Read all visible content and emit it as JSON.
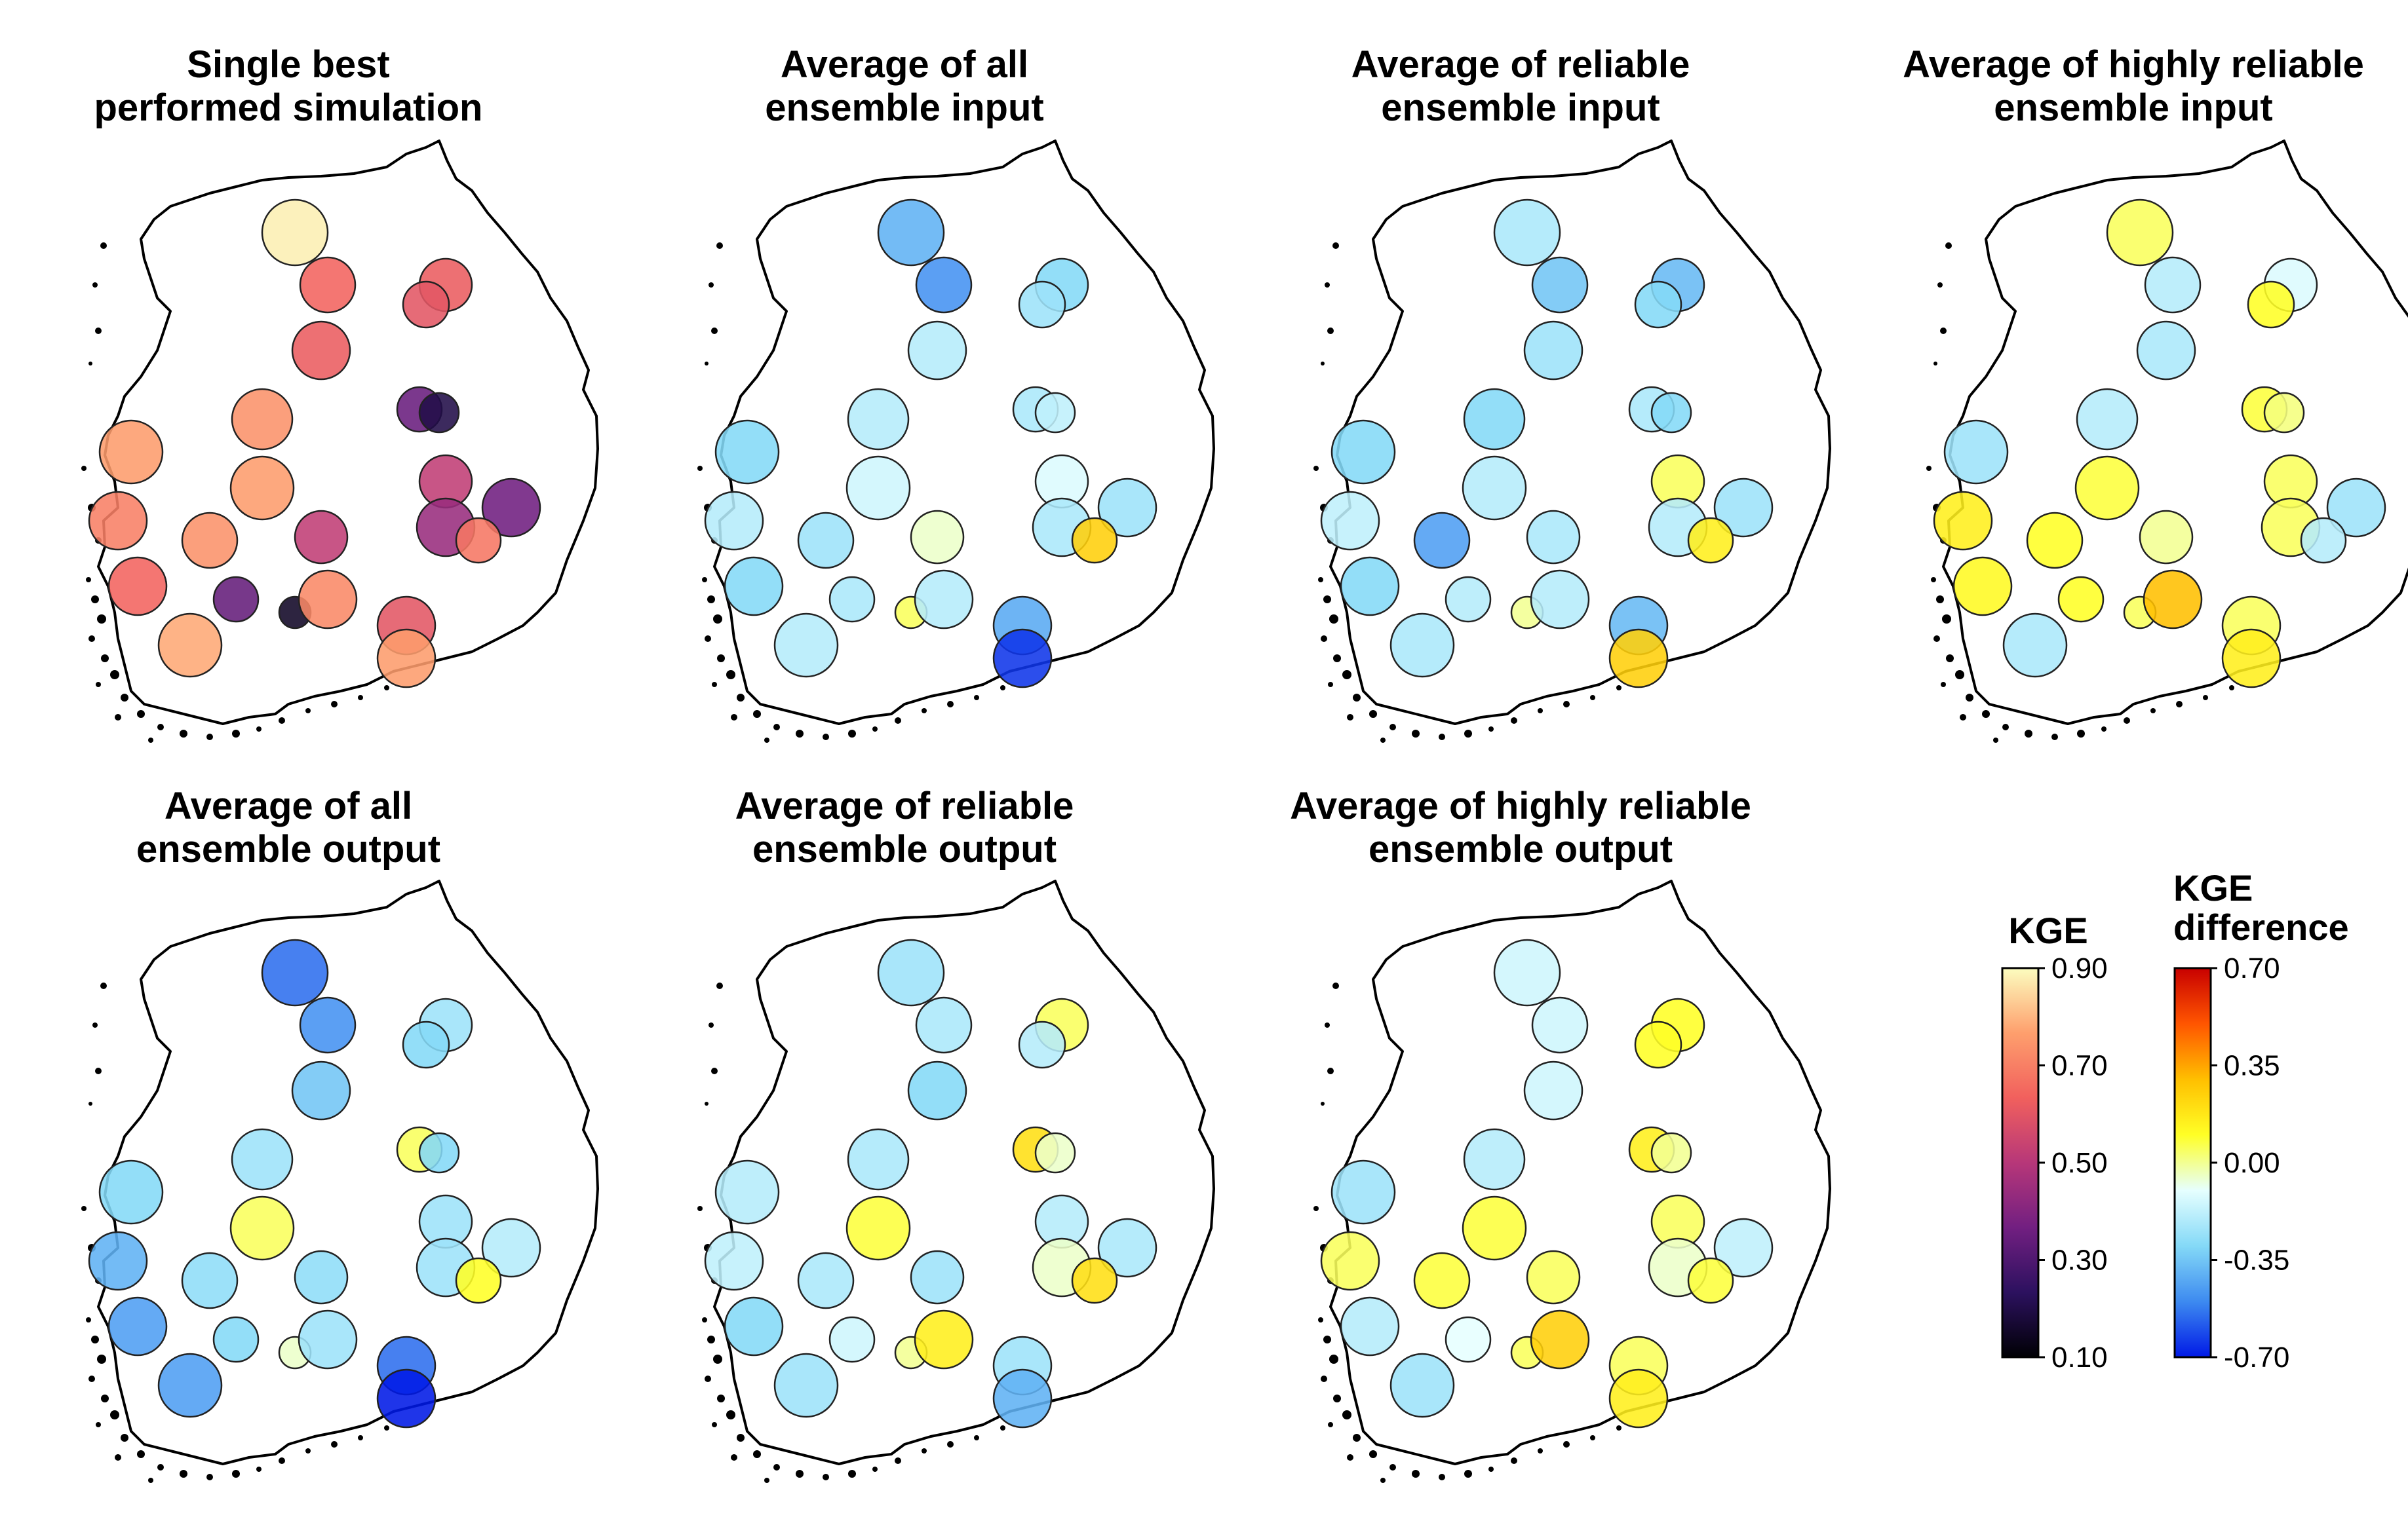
{
  "chart_data": {
    "type": "map",
    "measure": "KGE",
    "panels": [
      {
        "id": "single-best",
        "title_lines": [
          "Single best",
          "performed simulation"
        ],
        "scale": "kge",
        "stations": [
          {
            "station": 1,
            "value": 0.88
          },
          {
            "station": 2,
            "value": 0.64
          },
          {
            "station": 3,
            "value": 0.62
          },
          {
            "station": 4,
            "value": 0.62
          },
          {
            "station": 5,
            "value": 0.6
          },
          {
            "station": 6,
            "value": 0.35
          },
          {
            "station": 7,
            "value": 0.2
          },
          {
            "station": 8,
            "value": 0.74
          },
          {
            "station": 9,
            "value": 0.76
          },
          {
            "station": 10,
            "value": 0.76
          },
          {
            "station": 11,
            "value": 0.52
          },
          {
            "station": 12,
            "value": 0.52
          },
          {
            "station": 13,
            "value": 0.74
          },
          {
            "station": 14,
            "value": 0.7
          },
          {
            "station": 15,
            "value": 0.44
          },
          {
            "station": 16,
            "value": 0.36
          },
          {
            "station": 17,
            "value": 0.68
          },
          {
            "station": 18,
            "value": 0.64
          },
          {
            "station": 19,
            "value": 0.34
          },
          {
            "station": 20,
            "value": 0.15
          },
          {
            "station": 21,
            "value": 0.72
          },
          {
            "station": 22,
            "value": 0.6
          },
          {
            "station": 23,
            "value": 0.76
          },
          {
            "station": 24,
            "value": 0.78
          }
        ]
      },
      {
        "id": "avg-all-input",
        "title_lines": [
          "Average of all",
          "ensemble input"
        ],
        "scale": "diff",
        "stations": [
          {
            "station": 1,
            "value": -0.4
          },
          {
            "station": 2,
            "value": -0.48
          },
          {
            "station": 3,
            "value": -0.3
          },
          {
            "station": 4,
            "value": -0.2
          },
          {
            "station": 5,
            "value": -0.25
          },
          {
            "station": 6,
            "value": -0.22
          },
          {
            "station": 7,
            "value": -0.18
          },
          {
            "station": 8,
            "value": -0.2
          },
          {
            "station": 9,
            "value": -0.3
          },
          {
            "station": 10,
            "value": -0.15
          },
          {
            "station": 11,
            "value": -0.12
          },
          {
            "station": 12,
            "value": -0.05
          },
          {
            "station": 13,
            "value": -0.25
          },
          {
            "station": 14,
            "value": -0.2
          },
          {
            "station": 15,
            "value": -0.22
          },
          {
            "station": 16,
            "value": -0.25
          },
          {
            "station": 17,
            "value": 0.25
          },
          {
            "station": 18,
            "value": -0.3
          },
          {
            "station": 19,
            "value": -0.22
          },
          {
            "station": 20,
            "value": 0.05
          },
          {
            "station": 21,
            "value": -0.2
          },
          {
            "station": 22,
            "value": -0.42
          },
          {
            "station": 23,
            "value": -0.65
          },
          {
            "station": 24,
            "value": -0.2
          }
        ]
      },
      {
        "id": "avg-reliable-input",
        "title_lines": [
          "Average of reliable",
          "ensemble input"
        ],
        "scale": "diff",
        "stations": [
          {
            "station": 1,
            "value": -0.22
          },
          {
            "station": 2,
            "value": -0.35
          },
          {
            "station": 3,
            "value": -0.38
          },
          {
            "station": 4,
            "value": -0.25
          },
          {
            "station": 5,
            "value": -0.3
          },
          {
            "station": 6,
            "value": -0.22
          },
          {
            "station": 7,
            "value": -0.3
          },
          {
            "station": 8,
            "value": -0.3
          },
          {
            "station": 9,
            "value": -0.3
          },
          {
            "station": 10,
            "value": -0.2
          },
          {
            "station": 11,
            "value": 0.05
          },
          {
            "station": 12,
            "value": -0.22
          },
          {
            "station": 13,
            "value": -0.45
          },
          {
            "station": 14,
            "value": -0.18
          },
          {
            "station": 15,
            "value": -0.2
          },
          {
            "station": 16,
            "value": -0.25
          },
          {
            "station": 17,
            "value": 0.15
          },
          {
            "station": 18,
            "value": -0.3
          },
          {
            "station": 19,
            "value": -0.2
          },
          {
            "station": 20,
            "value": 0.0
          },
          {
            "station": 21,
            "value": -0.2
          },
          {
            "station": 22,
            "value": -0.38
          },
          {
            "station": 23,
            "value": 0.25
          },
          {
            "station": 24,
            "value": -0.22
          }
        ]
      },
      {
        "id": "avg-highly-reliable-input",
        "title_lines": [
          "Average of highly reliable",
          "ensemble input"
        ],
        "scale": "diff",
        "stations": [
          {
            "station": 1,
            "value": 0.05
          },
          {
            "station": 2,
            "value": -0.2
          },
          {
            "station": 3,
            "value": -0.12
          },
          {
            "station": 4,
            "value": -0.22
          },
          {
            "station": 5,
            "value": 0.1
          },
          {
            "station": 6,
            "value": 0.08
          },
          {
            "station": 7,
            "value": 0.02
          },
          {
            "station": 8,
            "value": -0.2
          },
          {
            "station": 9,
            "value": -0.25
          },
          {
            "station": 10,
            "value": 0.08
          },
          {
            "station": 11,
            "value": 0.05
          },
          {
            "station": 12,
            "value": 0.0
          },
          {
            "station": 13,
            "value": 0.1
          },
          {
            "station": 14,
            "value": 0.15
          },
          {
            "station": 15,
            "value": 0.05
          },
          {
            "station": 16,
            "value": -0.25
          },
          {
            "station": 17,
            "value": -0.2
          },
          {
            "station": 18,
            "value": 0.12
          },
          {
            "station": 19,
            "value": 0.1
          },
          {
            "station": 20,
            "value": 0.05
          },
          {
            "station": 21,
            "value": 0.3
          },
          {
            "station": 22,
            "value": 0.05
          },
          {
            "station": 23,
            "value": 0.15
          },
          {
            "station": 24,
            "value": -0.22
          }
        ]
      },
      {
        "id": "avg-all-output",
        "title_lines": [
          "Average of all",
          "ensemble output"
        ],
        "scale": "diff",
        "stations": [
          {
            "station": 1,
            "value": -0.55
          },
          {
            "station": 2,
            "value": -0.48
          },
          {
            "station": 3,
            "value": -0.25
          },
          {
            "station": 4,
            "value": -0.35
          },
          {
            "station": 5,
            "value": -0.3
          },
          {
            "station": 6,
            "value": 0.05
          },
          {
            "station": 7,
            "value": -0.3
          },
          {
            "station": 8,
            "value": -0.25
          },
          {
            "station": 9,
            "value": -0.3
          },
          {
            "station": 10,
            "value": 0.05
          },
          {
            "station": 11,
            "value": -0.25
          },
          {
            "station": 12,
            "value": -0.28
          },
          {
            "station": 13,
            "value": -0.28
          },
          {
            "station": 14,
            "value": -0.4
          },
          {
            "station": 15,
            "value": -0.25
          },
          {
            "station": 16,
            "value": -0.2
          },
          {
            "station": 17,
            "value": 0.1
          },
          {
            "station": 18,
            "value": -0.45
          },
          {
            "station": 19,
            "value": -0.3
          },
          {
            "station": 20,
            "value": -0.05
          },
          {
            "station": 21,
            "value": -0.25
          },
          {
            "station": 22,
            "value": -0.55
          },
          {
            "station": 23,
            "value": -0.7
          },
          {
            "station": 24,
            "value": -0.45
          }
        ]
      },
      {
        "id": "avg-reliable-output",
        "title_lines": [
          "Average of reliable",
          "ensemble output"
        ],
        "scale": "diff",
        "stations": [
          {
            "station": 1,
            "value": -0.25
          },
          {
            "station": 2,
            "value": -0.22
          },
          {
            "station": 3,
            "value": 0.05
          },
          {
            "station": 4,
            "value": -0.3
          },
          {
            "station": 5,
            "value": -0.2
          },
          {
            "station": 6,
            "value": 0.2
          },
          {
            "station": 7,
            "value": -0.05
          },
          {
            "station": 8,
            "value": -0.22
          },
          {
            "station": 9,
            "value": -0.2
          },
          {
            "station": 10,
            "value": 0.08
          },
          {
            "station": 11,
            "value": -0.2
          },
          {
            "station": 12,
            "value": -0.25
          },
          {
            "station": 13,
            "value": -0.22
          },
          {
            "station": 14,
            "value": -0.18
          },
          {
            "station": 15,
            "value": -0.05
          },
          {
            "station": 16,
            "value": -0.22
          },
          {
            "station": 17,
            "value": 0.2
          },
          {
            "station": 18,
            "value": -0.3
          },
          {
            "station": 19,
            "value": -0.15
          },
          {
            "station": 20,
            "value": 0.0
          },
          {
            "station": 21,
            "value": 0.15
          },
          {
            "station": 22,
            "value": -0.25
          },
          {
            "station": 23,
            "value": -0.4
          },
          {
            "station": 24,
            "value": -0.25
          }
        ]
      },
      {
        "id": "avg-highly-reliable-output",
        "title_lines": [
          "Average of highly reliable",
          "ensemble output"
        ],
        "scale": "diff",
        "stations": [
          {
            "station": 1,
            "value": -0.15
          },
          {
            "station": 2,
            "value": -0.15
          },
          {
            "station": 3,
            "value": 0.1
          },
          {
            "station": 4,
            "value": -0.15
          },
          {
            "station": 5,
            "value": 0.1
          },
          {
            "station": 6,
            "value": 0.15
          },
          {
            "station": 7,
            "value": 0.0
          },
          {
            "station": 8,
            "value": -0.2
          },
          {
            "station": 9,
            "value": -0.25
          },
          {
            "station": 10,
            "value": 0.08
          },
          {
            "station": 11,
            "value": 0.05
          },
          {
            "station": 12,
            "value": 0.05
          },
          {
            "station": 13,
            "value": 0.08
          },
          {
            "station": 14,
            "value": 0.05
          },
          {
            "station": 15,
            "value": -0.05
          },
          {
            "station": 16,
            "value": -0.18
          },
          {
            "station": 17,
            "value": 0.08
          },
          {
            "station": 18,
            "value": -0.2
          },
          {
            "station": 19,
            "value": -0.1
          },
          {
            "station": 20,
            "value": 0.05
          },
          {
            "station": 21,
            "value": 0.25
          },
          {
            "station": 22,
            "value": 0.05
          },
          {
            "station": 23,
            "value": 0.15
          },
          {
            "station": 24,
            "value": -0.25
          }
        ]
      }
    ],
    "legends": [
      {
        "id": "kge",
        "title_lines": [
          "KGE"
        ],
        "range": [
          0.1,
          0.9
        ],
        "ticks": [
          {
            "label": "0.90",
            "value": 0.9
          },
          {
            "label": "0.70",
            "value": 0.7
          },
          {
            "label": "0.50",
            "value": 0.5
          },
          {
            "label": "0.30",
            "value": 0.3
          },
          {
            "label": "0.10",
            "value": 0.1
          }
        ],
        "colors": [
          "#000004",
          "#2c115f",
          "#721f81",
          "#b73779",
          "#f1605d",
          "#fe9f6d",
          "#fcfdbf"
        ]
      },
      {
        "id": "diff",
        "title_lines": [
          "KGE",
          "difference"
        ],
        "range": [
          -0.7,
          0.7
        ],
        "ticks": [
          {
            "label": "0.70",
            "value": 0.7
          },
          {
            "label": "0.35",
            "value": 0.35
          },
          {
            "label": "0.00",
            "value": 0.0
          },
          {
            "label": "-0.35",
            "value": -0.35
          },
          {
            "label": "-0.70",
            "value": -0.7
          }
        ],
        "colors": [
          "#0019e6",
          "#3d8af0",
          "#84d9f7",
          "#e6ffff",
          "#ffff26",
          "#ffbf00",
          "#ff5500",
          "#c80000"
        ]
      }
    ]
  }
}
